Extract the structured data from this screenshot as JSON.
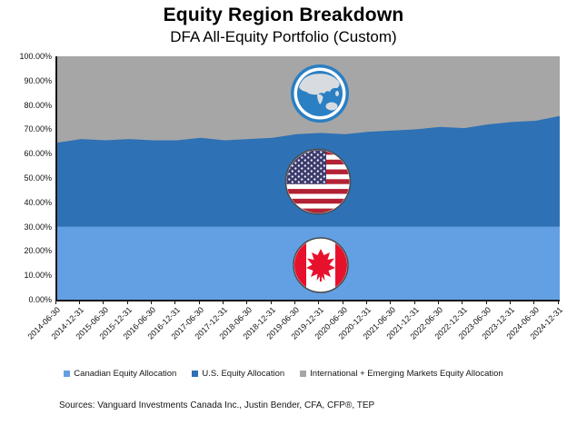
{
  "title": "Equity Region Breakdown",
  "subtitle": "DFA All-Equity Portfolio (Custom)",
  "source_note": "Sources: Vanguard Investments Canada Inc., Justin Bender, CFA, CFP®, TEP",
  "icons": {
    "international": "globe-asia-icon",
    "us": "us-flag-icon",
    "canada": "canada-flag-icon"
  },
  "colors": {
    "canadian": "#63A0E3",
    "us": "#2E71B5",
    "international": "#A6A6A6",
    "axis": "#161616",
    "us_flag_canton": "#3C3B6E",
    "us_flag_red": "#B22234",
    "canada_red": "#E8112D"
  },
  "chart_data": {
    "type": "area",
    "stacked": true,
    "title": "Equity Region Breakdown",
    "subtitle": "DFA All-Equity Portfolio (Custom)",
    "xlabel": "",
    "ylabel": "",
    "ylim": [
      0,
      100
    ],
    "grid": false,
    "legend_position": "bottom",
    "y_ticks": [
      "100.00%",
      "90.00%",
      "80.00%",
      "70.00%",
      "60.00%",
      "50.00%",
      "40.00%",
      "30.00%",
      "20.00%",
      "10.00%",
      "0.00%"
    ],
    "x": [
      "2014-06-30",
      "2014-12-31",
      "2015-06-30",
      "2015-12-31",
      "2016-06-30",
      "2016-12-31",
      "2017-06-30",
      "2017-12-31",
      "2018-06-30",
      "2018-12-31",
      "2019-06-30",
      "2019-12-31",
      "2020-06-30",
      "2020-12-31",
      "2021-06-30",
      "2021-12-31",
      "2022-06-30",
      "2022-12-31",
      "2023-06-30",
      "2023-12-31",
      "2024-06-30",
      "2024-12-31"
    ],
    "series": [
      {
        "name": "Canadian Equity Allocation",
        "color": "#63A0E3",
        "values": [
          30.0,
          30.0,
          30.0,
          30.0,
          30.0,
          30.0,
          30.0,
          30.0,
          30.0,
          30.0,
          30.0,
          30.0,
          30.0,
          30.0,
          30.0,
          30.0,
          30.0,
          30.0,
          30.0,
          30.0,
          30.0,
          30.0
        ]
      },
      {
        "name": "U.S. Equity Allocation",
        "color": "#2E71B5",
        "values": [
          34.5,
          36.0,
          35.5,
          36.0,
          35.5,
          35.5,
          36.5,
          35.5,
          36.0,
          36.5,
          38.0,
          38.5,
          38.0,
          39.0,
          39.5,
          40.0,
          41.0,
          40.5,
          42.0,
          43.0,
          43.5,
          45.5
        ]
      },
      {
        "name": "International + Emerging Markets Equity Allocation",
        "color": "#A6A6A6",
        "values": [
          35.5,
          34.0,
          34.5,
          34.0,
          34.5,
          34.5,
          33.5,
          34.5,
          34.0,
          33.5,
          32.0,
          31.5,
          32.0,
          31.0,
          30.5,
          30.0,
          29.0,
          29.5,
          28.0,
          27.0,
          26.5,
          24.5
        ]
      }
    ]
  }
}
